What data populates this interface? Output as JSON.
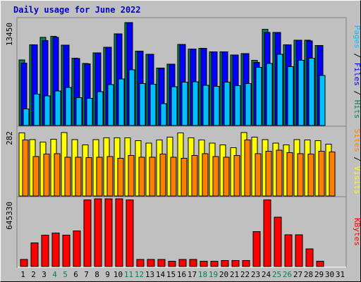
{
  "chart_data": {
    "type": "bar",
    "title": "Daily usage for June 2022",
    "x": [
      "1",
      "2",
      "3",
      "4",
      "5",
      "6",
      "7",
      "8",
      "9",
      "10",
      "11",
      "12",
      "13",
      "14",
      "15",
      "16",
      "17",
      "18",
      "19",
      "20",
      "21",
      "22",
      "23",
      "24",
      "25",
      "26",
      "27",
      "28",
      "29",
      "30",
      "31"
    ],
    "weekend_days": [
      "4",
      "5",
      "11",
      "12",
      "18",
      "19",
      "25",
      "26"
    ],
    "panels": [
      {
        "id": "hits-files-pages",
        "ylabel_parts": [
          "Pages",
          "Files",
          "Hits"
        ],
        "ymax_label": "13450",
        "ymax": 13450,
        "series": [
          {
            "name": "Hits",
            "color": "#00805c",
            "values": [
              8450,
              10400,
              11350,
              11500,
              10350,
              8700,
              8000,
              9350,
              10100,
              11800,
              13250,
              9600,
              9200,
              7400,
              7900,
              10450,
              9850,
              9950,
              9500,
              9500,
              9100,
              9250,
              8400,
              12400,
              12000,
              10400,
              11000,
              11000,
              10300,
              null,
              null
            ]
          },
          {
            "name": "Files",
            "color": "#0000ff",
            "values": [
              8050,
              10400,
              10950,
              11350,
              10350,
              8650,
              7950,
              9350,
              10100,
              11800,
              13250,
              9600,
              9200,
              7400,
              7900,
              10450,
              9850,
              9950,
              9500,
              9500,
              9100,
              9250,
              8150,
              12000,
              12000,
              10400,
              11000,
              10900,
              10300,
              null,
              null
            ]
          },
          {
            "name": "Pages",
            "color": "#00c0ff",
            "values": [
              2150,
              4050,
              3800,
              4450,
              4900,
              3600,
              3500,
              4350,
              5250,
              6000,
              7200,
              5400,
              5300,
              2800,
              5000,
              5600,
              5650,
              5200,
              5050,
              5600,
              5150,
              5400,
              7500,
              8000,
              9200,
              7600,
              8400,
              8700,
              6450,
              null,
              null
            ]
          }
        ]
      },
      {
        "id": "visits-sites",
        "ylabel_parts": [
          "Sites",
          "Visits"
        ],
        "ymax_label": "282",
        "ymax": 282,
        "series": [
          {
            "name": "Visits",
            "color": "#ffff00",
            "values": [
              268,
              240,
              230,
              242,
              270,
              240,
              218,
              240,
              248,
              248,
              248,
              235,
              225,
              238,
              250,
              268,
              248,
              238,
              225,
              218,
              205,
              270,
              250,
              240,
              225,
              218,
              240,
              238,
              235,
              220,
              null
            ]
          },
          {
            "name": "Sites",
            "color": "#ff8000",
            "values": [
              238,
              168,
              178,
              180,
              165,
              165,
              163,
              165,
              168,
              160,
              172,
              165,
              165,
              178,
              165,
              160,
              172,
              180,
              168,
              165,
              172,
              238,
              180,
              190,
              195,
              185,
              180,
              178,
              190,
              188,
              null
            ]
          }
        ]
      },
      {
        "id": "kbytes",
        "ylabel_parts": [
          "KBytes"
        ],
        "ymax_label": "645330",
        "ymax": 645330,
        "series": [
          {
            "name": "KBytes",
            "color": "#ff0000",
            "values": [
              70000,
              230000,
              305000,
              325000,
              305000,
              345000,
              650000,
              660000,
              660000,
              660000,
              650000,
              70000,
              70000,
              70000,
              50000,
              70000,
              70000,
              50000,
              50000,
              60000,
              60000,
              60000,
              340000,
              650000,
              480000,
              310000,
              310000,
              170000,
              50000,
              null,
              null
            ]
          }
        ]
      }
    ]
  },
  "colors": {
    "background": "#c0c0c0",
    "plot_background": "#c0c0c0",
    "title": "#0000cc",
    "day_label": "#000000",
    "weekend_label": "#00805c"
  }
}
